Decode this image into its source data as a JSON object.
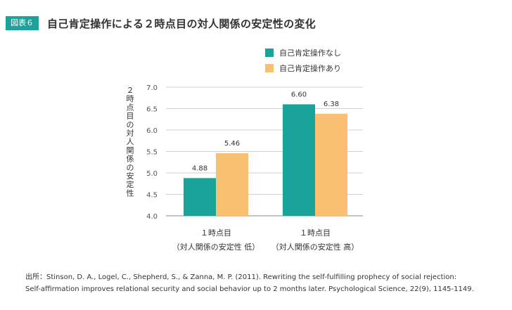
{
  "header": {
    "badge": "図表６",
    "title": "自己肯定操作による２時点目の対人関係の安定性の変化"
  },
  "chart_data": {
    "type": "bar",
    "ylabel": "２時点目の対人関係の安定性",
    "ylim": [
      4.0,
      7.0
    ],
    "yticks": [
      "4.0",
      "4.5",
      "5.0",
      "5.5",
      "6.0",
      "6.5",
      "7.0"
    ],
    "categories": [
      {
        "line1": "１時点目",
        "line2": "（対人関係の安定性 低）"
      },
      {
        "line1": "１時点目",
        "line2": "（対人関係の安定性 高）"
      }
    ],
    "series": [
      {
        "name": "自己肯定操作なし",
        "color": "#1aa39a",
        "values": [
          4.88,
          6.6
        ],
        "labels": [
          "4.88",
          "6.60"
        ]
      },
      {
        "name": "自己肯定操作あり",
        "color": "#f8c070",
        "values": [
          5.46,
          6.38
        ],
        "labels": [
          "5.46",
          "6.38"
        ]
      }
    ],
    "legend_position": "top-right"
  },
  "source": {
    "line1": "出所：Stinson, D. A., Logel, C., Shepherd, S., & Zanna, M. P. (2011). Rewriting the self-fulfilling prophecy of social rejection:",
    "line2": "Self-affirmation improves relational security and social behavior up to 2 months later. Psychological Science, 22(9), 1145-1149."
  }
}
